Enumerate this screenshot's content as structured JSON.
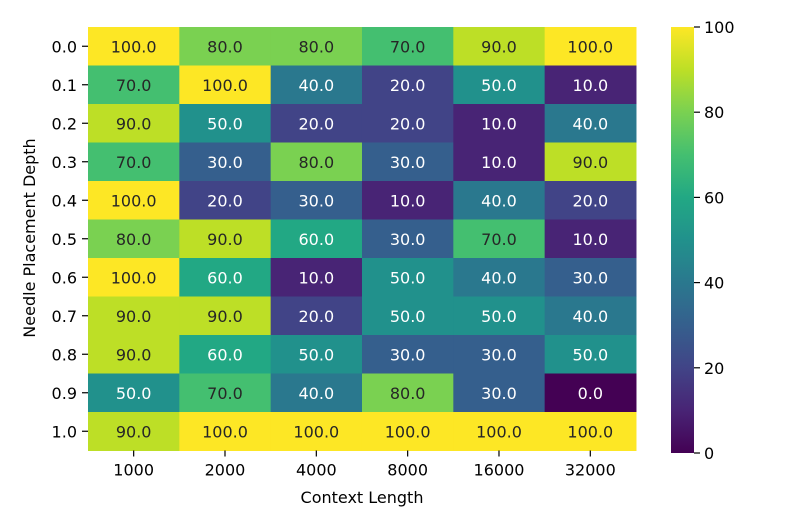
{
  "chart_data": {
    "type": "heatmap",
    "xlabel": "Context Length",
    "ylabel": "Needle Placement Depth",
    "x_categories": [
      "1000",
      "2000",
      "4000",
      "8000",
      "16000",
      "32000"
    ],
    "y_categories": [
      "0.0",
      "0.1",
      "0.2",
      "0.3",
      "0.4",
      "0.5",
      "0.6",
      "0.7",
      "0.8",
      "0.9",
      "1.0"
    ],
    "values": [
      [
        100.0,
        80.0,
        80.0,
        70.0,
        90.0,
        100.0
      ],
      [
        70.0,
        100.0,
        40.0,
        20.0,
        50.0,
        10.0
      ],
      [
        90.0,
        50.0,
        20.0,
        20.0,
        10.0,
        40.0
      ],
      [
        70.0,
        30.0,
        80.0,
        30.0,
        10.0,
        90.0
      ],
      [
        100.0,
        20.0,
        30.0,
        10.0,
        40.0,
        20.0
      ],
      [
        80.0,
        90.0,
        60.0,
        30.0,
        70.0,
        10.0
      ],
      [
        100.0,
        60.0,
        10.0,
        50.0,
        40.0,
        30.0
      ],
      [
        90.0,
        90.0,
        20.0,
        50.0,
        50.0,
        40.0
      ],
      [
        90.0,
        60.0,
        50.0,
        30.0,
        30.0,
        50.0
      ],
      [
        50.0,
        70.0,
        40.0,
        80.0,
        30.0,
        0.0
      ],
      [
        90.0,
        100.0,
        100.0,
        100.0,
        100.0,
        100.0
      ]
    ],
    "value_range": [
      0,
      100
    ],
    "colormap": "viridis",
    "colorbar": {
      "ticks": [
        "0",
        "20",
        "40",
        "60",
        "80",
        "100"
      ]
    },
    "grid": false
  }
}
